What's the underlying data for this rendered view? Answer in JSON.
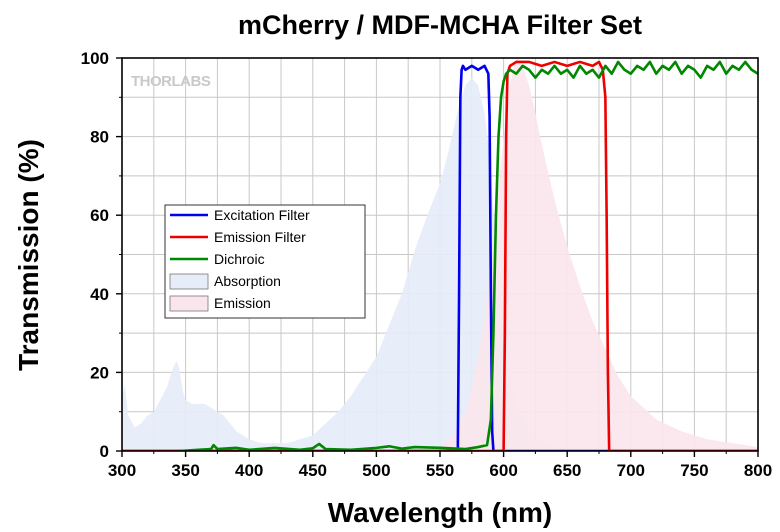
{
  "chart_data": {
    "type": "line",
    "title": "mCherry / MDF-MCHA Filter Set",
    "xlabel": "Wavelength (nm)",
    "ylabel": "Transmission (%)",
    "xlim": [
      300,
      800
    ],
    "ylim": [
      0,
      100
    ],
    "xticks": [
      300,
      350,
      400,
      450,
      500,
      550,
      600,
      650,
      700,
      750,
      800
    ],
    "yticks": [
      0,
      20,
      40,
      60,
      80,
      100
    ],
    "grid": true,
    "watermark": "THORLABS",
    "legend_position": "center-left",
    "series": [
      {
        "name": "Excitation Filter",
        "kind": "line",
        "color": "#0000ee",
        "x": [
          300,
          564,
          565,
          566,
          567,
          568,
          570,
          575,
          580,
          585,
          588,
          589,
          590,
          591,
          592,
          800
        ],
        "y": [
          0,
          0,
          40,
          90,
          97,
          98,
          97,
          98,
          97,
          98,
          96,
          85,
          40,
          5,
          0,
          0
        ]
      },
      {
        "name": "Emission Filter",
        "kind": "line",
        "color": "#ee0000",
        "x": [
          300,
          600,
          601,
          602,
          603,
          605,
          610,
          620,
          630,
          640,
          650,
          660,
          670,
          675,
          678,
          680,
          681,
          682,
          683,
          800
        ],
        "y": [
          0,
          0,
          30,
          80,
          96,
          98,
          99,
          99,
          98,
          99,
          98,
          99,
          98,
          99,
          97,
          90,
          60,
          20,
          0,
          0
        ]
      },
      {
        "name": "Dichroic",
        "kind": "line",
        "color": "#008800",
        "x": [
          345,
          360,
          370,
          372,
          375,
          390,
          400,
          420,
          440,
          450,
          455,
          460,
          480,
          500,
          510,
          520,
          530,
          550,
          570,
          580,
          587,
          590,
          592,
          594,
          596,
          598,
          600,
          602,
          605,
          610,
          615,
          620,
          625,
          630,
          635,
          640,
          645,
          650,
          655,
          660,
          665,
          670,
          675,
          680,
          685,
          690,
          695,
          700,
          705,
          710,
          715,
          720,
          725,
          730,
          735,
          740,
          745,
          750,
          755,
          760,
          765,
          770,
          775,
          780,
          785,
          790,
          795,
          800
        ],
        "y": [
          0,
          0.3,
          0.5,
          1.5,
          0.5,
          0.8,
          0.3,
          0.8,
          0.3,
          0.7,
          1.8,
          0.5,
          0.3,
          0.8,
          1.2,
          0.6,
          1.0,
          0.8,
          0.5,
          1.0,
          1.5,
          8,
          30,
          60,
          80,
          90,
          94,
          96,
          97,
          96,
          98,
          97,
          95,
          97,
          96,
          98,
          96,
          97,
          95,
          98,
          96,
          97,
          95,
          98,
          96,
          99,
          97,
          96,
          98,
          97,
          99,
          96,
          98,
          97,
          99,
          96,
          98,
          97,
          95,
          98,
          97,
          99,
          96,
          98,
          97,
          99,
          97,
          96
        ]
      },
      {
        "name": "Absorption",
        "kind": "area",
        "color": "#e6ecf8",
        "x": [
          300,
          302,
          305,
          310,
          315,
          320,
          325,
          330,
          335,
          340,
          343,
          345,
          348,
          350,
          355,
          360,
          365,
          370,
          375,
          380,
          385,
          390,
          400,
          410,
          420,
          430,
          440,
          450,
          460,
          470,
          480,
          490,
          500,
          510,
          520,
          530,
          540,
          550,
          555,
          560,
          565,
          570,
          575,
          580,
          585,
          588,
          590,
          595,
          600,
          605,
          610,
          620,
          630,
          640,
          660,
          680,
          700
        ],
        "y": [
          13,
          17,
          9,
          6,
          7,
          9,
          10,
          13,
          16,
          21,
          23,
          21,
          15,
          13,
          12,
          12,
          12,
          11,
          10,
          9,
          7,
          5,
          3,
          2,
          2,
          2,
          3,
          4,
          7,
          10,
          14,
          19,
          24,
          32,
          40,
          51,
          60,
          68,
          74,
          81,
          88,
          93,
          95,
          93,
          86,
          78,
          70,
          50,
          33,
          20,
          12,
          5,
          2,
          1,
          0.5,
          0.2,
          0
        ]
      },
      {
        "name": "Emission",
        "kind": "area",
        "color": "#fbe5ec",
        "x": [
          540,
          550,
          560,
          570,
          575,
          580,
          585,
          590,
          595,
          600,
          605,
          608,
          610,
          615,
          620,
          625,
          630,
          640,
          650,
          660,
          670,
          680,
          690,
          700,
          720,
          740,
          760,
          780,
          800
        ],
        "y": [
          0,
          1,
          4,
          10,
          16,
          24,
          34,
          48,
          64,
          80,
          93,
          98,
          100,
          98,
          93,
          86,
          78,
          64,
          52,
          42,
          33,
          26,
          19,
          14,
          8,
          5,
          3,
          2,
          1
        ]
      }
    ]
  }
}
